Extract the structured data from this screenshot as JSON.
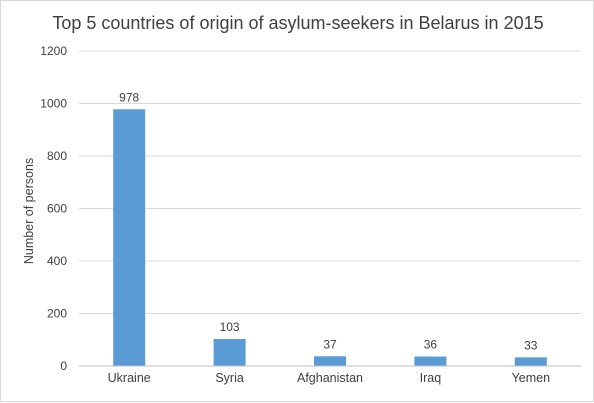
{
  "chart_data": {
    "type": "bar",
    "title": "Top 5 countries of origin of asylum-seekers in Belarus  in 2015",
    "xlabel": "",
    "ylabel": "Number of persons",
    "categories": [
      "Ukraine",
      "Syria",
      "Afghanistan",
      "Iraq",
      "Yemen"
    ],
    "values": [
      978,
      103,
      37,
      36,
      33
    ],
    "data_labels": [
      "978",
      "103",
      "37",
      "36",
      "33"
    ],
    "ylim": [
      0,
      1200
    ],
    "yticks": [
      0,
      200,
      400,
      600,
      800,
      1000,
      1200
    ],
    "grid": true,
    "legend": "none",
    "bar_color": "#5b9bd5"
  }
}
